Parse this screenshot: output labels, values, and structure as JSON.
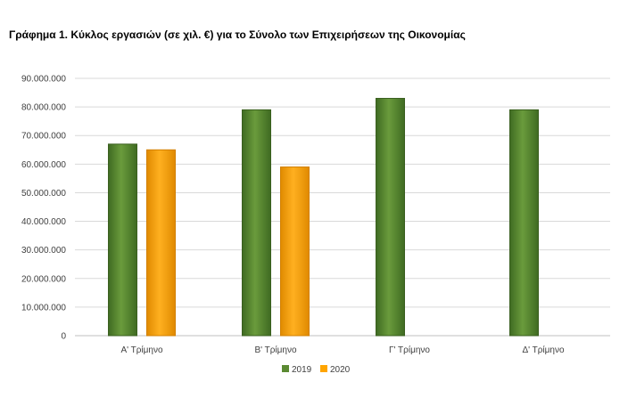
{
  "chart_data": {
    "type": "bar",
    "title": "Γράφημα 1.  Κύκλος εργασιών (σε χιλ. €) για το Σύνολο των Επιχειρήσεων της Οικονομίας",
    "categories": [
      "Α' Τρίμηνο",
      "Β' Τρίμηνο",
      "Γ' Τρίμηνο",
      "Δ' Τρίμηνο"
    ],
    "series": [
      {
        "name": "2019",
        "color": "#5B8A32",
        "values": [
          67000000,
          79000000,
          83000000,
          79000000
        ]
      },
      {
        "name": "2020",
        "color": "#FFA500",
        "values": [
          65000000,
          59000000,
          null,
          null
        ]
      }
    ],
    "ylim": [
      0,
      90000000
    ],
    "yticks": [
      0,
      10000000,
      20000000,
      30000000,
      40000000,
      50000000,
      60000000,
      70000000,
      80000000,
      90000000
    ],
    "ytick_labels": [
      "0",
      "10.000.000",
      "20.000.000",
      "30.000.000",
      "40.000.000",
      "50.000.000",
      "60.000.000",
      "70.000.000",
      "80.000.000",
      "90.000.000"
    ],
    "xlabel": "",
    "ylabel": "",
    "grid": true,
    "legend": "bottom"
  }
}
